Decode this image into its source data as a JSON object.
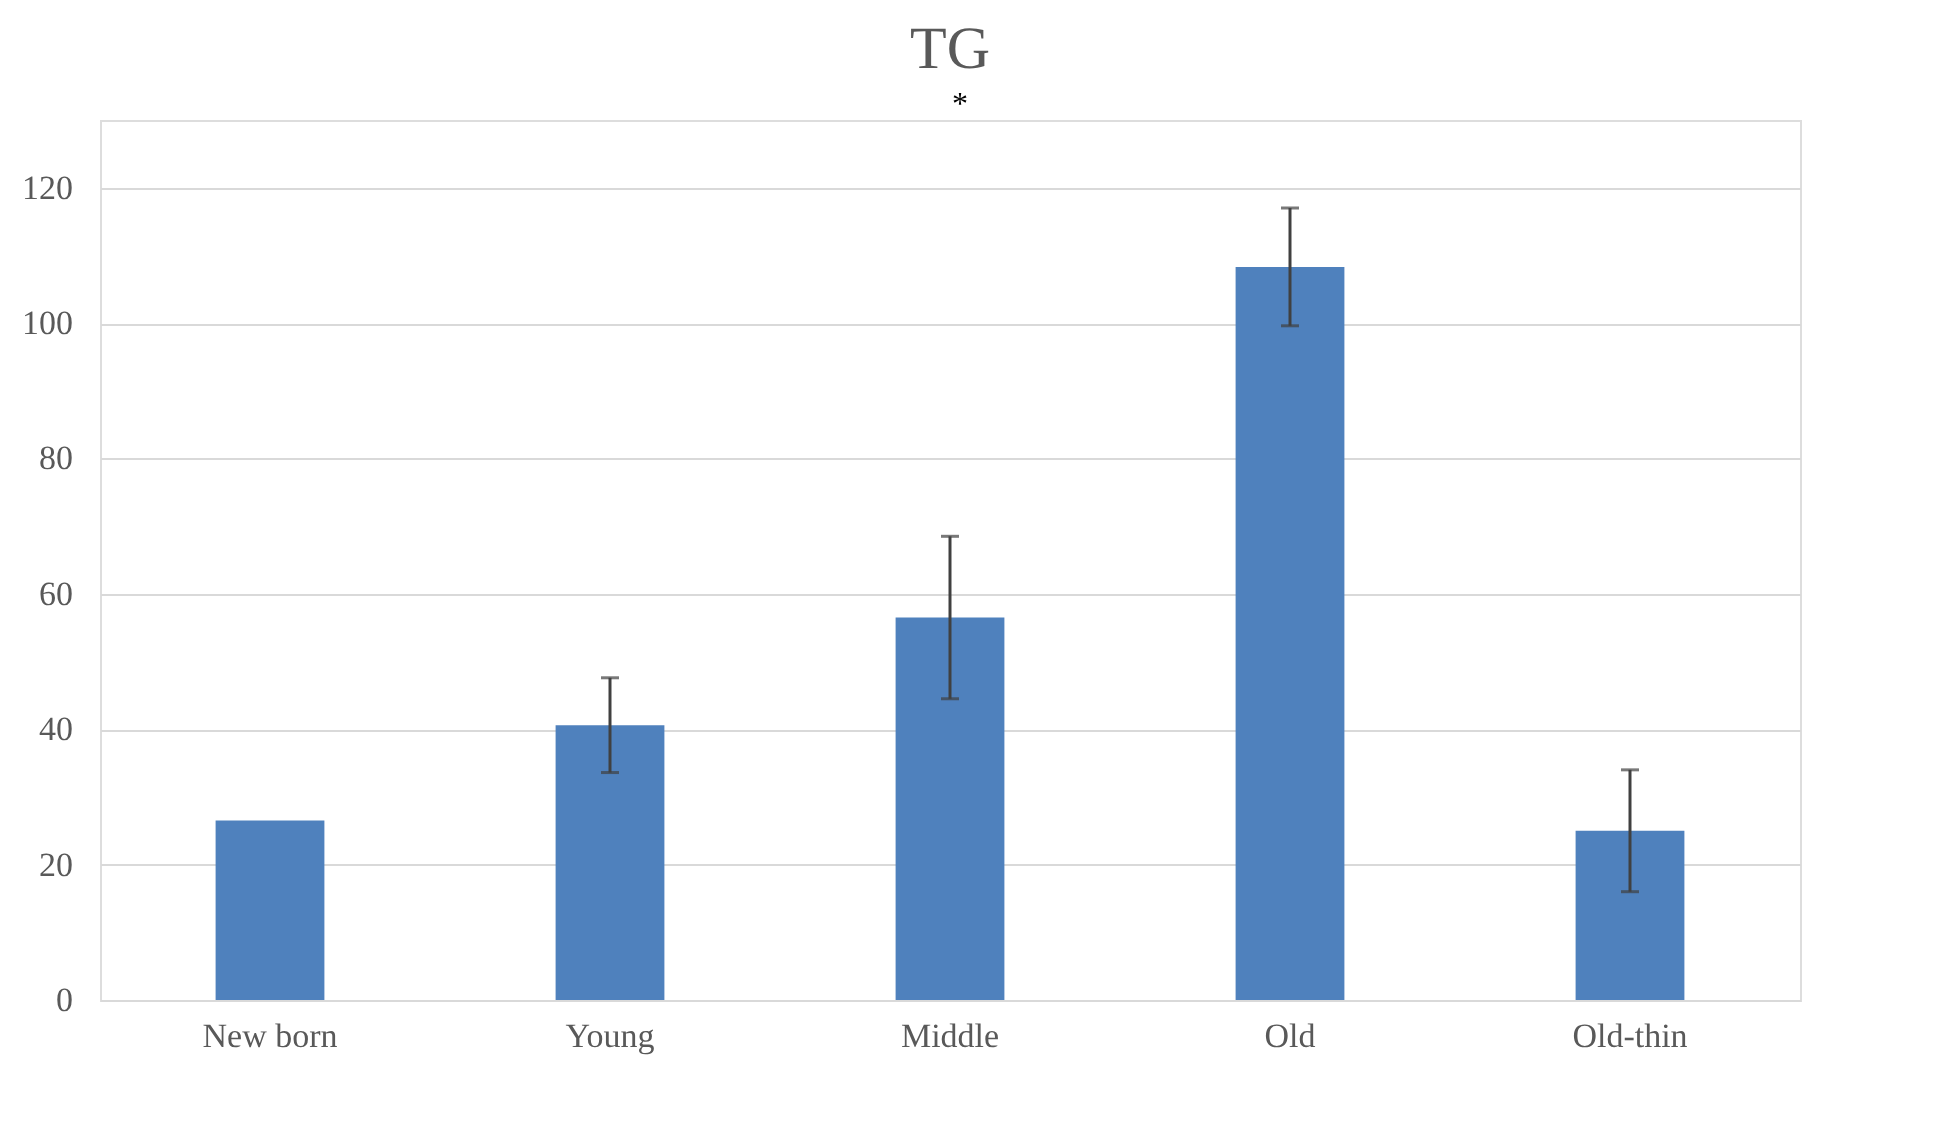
{
  "chart_data": {
    "type": "bar",
    "title": "TG",
    "categories": [
      "New born",
      "Young",
      "Middle",
      "Old",
      "Old-thin"
    ],
    "values": [
      26.5,
      40.6,
      56.5,
      108.3,
      25
    ],
    "errors": [
      null,
      7,
      12,
      8.7,
      9
    ],
    "color": "#4f81bd",
    "ylim": [
      0,
      130
    ],
    "yticks": [
      0,
      20,
      40,
      60,
      80,
      100,
      120
    ],
    "grid": "y",
    "annotations": [
      "*"
    ]
  }
}
